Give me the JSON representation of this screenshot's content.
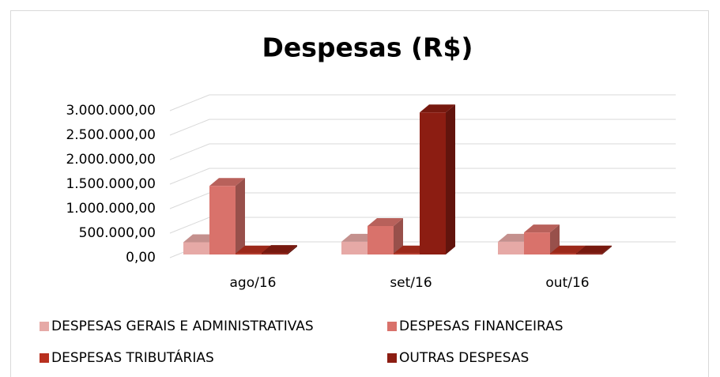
{
  "chart_data": {
    "type": "bar3d",
    "title": "Despesas (R$)",
    "categories": [
      "ago/16",
      "set/16",
      "out/16"
    ],
    "series": [
      {
        "name": "DESPESAS GERAIS E ADMINISTRATIVAS",
        "color": "#e6a9a6",
        "values": [
          250000,
          260000,
          260000
        ]
      },
      {
        "name": "DESPESAS FINANCEIRAS",
        "color": "#d9726b",
        "values": [
          1400000,
          580000,
          450000
        ]
      },
      {
        "name": "DESPESAS TRIBUTÁRIAS",
        "color": "#b8301f",
        "values": [
          20000,
          20000,
          20000
        ]
      },
      {
        "name": "OUTRAS DESPESAS",
        "color": "#8c1d12",
        "values": [
          30000,
          2900000,
          20000
        ]
      }
    ],
    "ylim": [
      0,
      3000000
    ],
    "yticks": [
      {
        "value": 0,
        "label": "0,00"
      },
      {
        "value": 500000,
        "label": "500.000,00"
      },
      {
        "value": 1000000,
        "label": "1.000.000,00"
      },
      {
        "value": 1500000,
        "label": "1.500.000,00"
      },
      {
        "value": 2000000,
        "label": "2.000.000,00"
      },
      {
        "value": 2500000,
        "label": "2.500.000,00"
      },
      {
        "value": 3000000,
        "label": "3.000.000,00"
      }
    ],
    "grid": true,
    "legend": "bottom"
  }
}
